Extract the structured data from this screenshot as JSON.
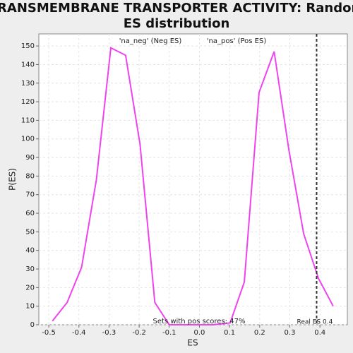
{
  "chart_data": {
    "type": "line",
    "title": [
      "TRANSMEMBRANE TRANSPORTER ACTIVITY: Random",
      "ES distribution"
    ],
    "x_label": "ES",
    "y_label": "P(ES)",
    "legend": [
      "'na_neg' (Neg ES)",
      "'na_pos' (Pos ES)"
    ],
    "legend_colors": [
      "#3f3fd8",
      "#e04040"
    ],
    "annotation": "Sets with pos scores: 47%",
    "real_es": {
      "value": 0.389,
      "label": "Real ES 0.4"
    },
    "series": [
      {
        "name": "P(ES)",
        "color": "#ee44ee",
        "x": [
          -0.488,
          -0.439,
          -0.391,
          -0.342,
          -0.294,
          -0.245,
          -0.197,
          -0.148,
          -0.1,
          -0.051,
          -0.003,
          0.046,
          0.102,
          0.149,
          0.198,
          0.248,
          0.297,
          0.346,
          0.395,
          0.444
        ],
        "values": [
          2,
          12,
          31,
          78,
          149,
          145,
          97,
          12,
          0,
          0,
          0,
          0,
          1,
          23,
          125,
          147,
          94,
          49,
          25,
          10
        ]
      }
    ],
    "xlim": [
      -0.533,
      0.491
    ],
    "ylim": [
      0,
      156.5
    ],
    "xticks": [
      -0.5,
      -0.4,
      -0.3,
      -0.2,
      -0.1,
      {
        "value": 0,
        "label": "0.0"
      },
      0.1,
      0.2,
      0.3,
      0.4
    ],
    "yticks": [
      0,
      10,
      20,
      30,
      40,
      50,
      60,
      70,
      80,
      90,
      100,
      110,
      120,
      130,
      140,
      150
    ],
    "grid": true
  }
}
